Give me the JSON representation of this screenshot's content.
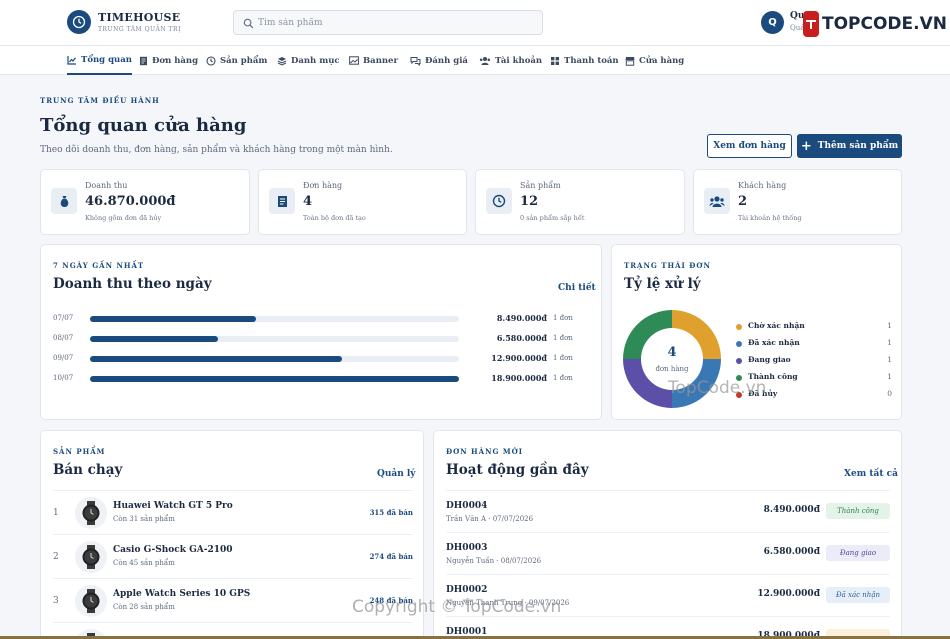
{
  "brand": {
    "name": "TIMEHOUSE",
    "subtitle": "TRUNG TÂM QUẢN TRỊ"
  },
  "search": {
    "placeholder": "Tìm sản phẩm",
    "value": ""
  },
  "user": {
    "initial": "Q",
    "name": "Quản trị viên",
    "role": "Quản trị"
  },
  "watermark": {
    "logo_text": "TOPCODE.VN",
    "overlay": "TopCode.vn",
    "copyright": "Copyright © TopCode.vn"
  },
  "nav": [
    {
      "label": "Tổng quan",
      "icon": "chart-line-icon",
      "active": true
    },
    {
      "label": "Đơn hàng",
      "icon": "receipt-icon"
    },
    {
      "label": "Sản phẩm",
      "icon": "clock-icon"
    },
    {
      "label": "Danh mục",
      "icon": "layers-icon"
    },
    {
      "label": "Banner",
      "icon": "image-icon"
    },
    {
      "label": "Đánh giá",
      "icon": "comments-icon"
    },
    {
      "label": "Tài khoản",
      "icon": "users-icon"
    },
    {
      "label": "Thanh toán",
      "icon": "grid-icon"
    },
    {
      "label": "Cửa hàng",
      "icon": "store-icon"
    }
  ],
  "hero": {
    "eyebrow": "TRUNG TÂM ĐIỀU HÀNH",
    "title": "Tổng quan cửa hàng",
    "subtitle": "Theo dõi doanh thu, đơn hàng, sản phẩm và khách hàng trong một màn hình.",
    "view_orders_label": "Xem đơn hàng",
    "add_product_label": "Thêm sản phẩm"
  },
  "stats": [
    {
      "label": "Doanh thu",
      "value": "46.870.000đ",
      "note": "Không gồm đơn đã hủy",
      "icon": "money-bag-icon"
    },
    {
      "label": "Đơn hàng",
      "value": "4",
      "note": "Toàn bộ đơn đã tạo",
      "icon": "receipt-icon"
    },
    {
      "label": "Sản phẩm",
      "value": "12",
      "note": "0 sản phẩm sắp hết",
      "icon": "clock-icon"
    },
    {
      "label": "Khách hàng",
      "value": "2",
      "note": "Tài khoản hệ thống",
      "icon": "users-icon"
    }
  ],
  "revenue": {
    "eyebrow": "7 NGÀY GẦN NHẤT",
    "title": "Doanh thu theo ngày",
    "link": "Chi tiết",
    "rows": [
      {
        "date": "07/07",
        "amount": "8.490.000đ",
        "orders": "1 đơn",
        "value": 8490000
      },
      {
        "date": "08/07",
        "amount": "6.580.000đ",
        "orders": "1 đơn",
        "value": 6580000
      },
      {
        "date": "09/07",
        "amount": "12.900.000đ",
        "orders": "1 đơn",
        "value": 12900000
      },
      {
        "date": "10/07",
        "amount": "18.900.000đ",
        "orders": "1 đơn",
        "value": 18900000
      }
    ],
    "max": 18900000
  },
  "status": {
    "eyebrow": "TRẠNG THÁI ĐƠN",
    "title": "Tỷ lệ xử lý",
    "total": "4",
    "total_label": "đơn hàng",
    "items": [
      {
        "label": "Chờ xác nhận",
        "count": "1",
        "value": 1,
        "color": "#e0a02e"
      },
      {
        "label": "Đã xác nhận",
        "count": "1",
        "value": 1,
        "color": "#3a78b5"
      },
      {
        "label": "Đang giao",
        "count": "1",
        "value": 1,
        "color": "#5b4fa8"
      },
      {
        "label": "Thành công",
        "count": "1",
        "value": 1,
        "color": "#2e8b57"
      },
      {
        "label": "Đã hủy",
        "count": "0",
        "value": 0,
        "color": "#c0392b"
      }
    ]
  },
  "bestsellers": {
    "eyebrow": "SẢN PHẨM",
    "title": "Bán chạy",
    "link": "Quản lý",
    "items": [
      {
        "rank": "1",
        "name": "Huawei Watch GT 5 Pro",
        "stock": "Còn 31 sản phẩm",
        "sold": "315 đã bán",
        "thumb": "watch-icon"
      },
      {
        "rank": "2",
        "name": "Casio G-Shock GA-2100",
        "stock": "Còn 45 sản phẩm",
        "sold": "274 đã bán",
        "thumb": "watch-icon"
      },
      {
        "rank": "3",
        "name": "Apple Watch Series 10 GPS",
        "stock": "Còn 28 sản phẩm",
        "sold": "248 đã bán",
        "thumb": "watch-icon"
      }
    ]
  },
  "orders": {
    "eyebrow": "ĐƠN HÀNG MỚI",
    "title": "Hoạt động gần đây",
    "link": "Xem tất cả",
    "items": [
      {
        "id": "DH0004",
        "meta": "Trần Văn A · 07/07/2026",
        "amount": "8.490.000đ",
        "status": "Thành công",
        "status_bg": "#e3f3e8",
        "status_fg": "#2e7d4f"
      },
      {
        "id": "DH0003",
        "meta": "Nguyễn Tuấn · 08/07/2026",
        "amount": "6.580.000đ",
        "status": "Đang giao",
        "status_bg": "#ecebf8",
        "status_fg": "#4b3f9a"
      },
      {
        "id": "DH0002",
        "meta": "Nguyễn Thanh Trung · 09/07/2026",
        "amount": "12.900.000đ",
        "status": "Đã xác nhận",
        "status_bg": "#e6eff8",
        "status_fg": "#2e5f96"
      },
      {
        "id": "DH0001",
        "meta": "",
        "amount": "18.900.000đ",
        "status": "",
        "status_bg": "#fbf0dc",
        "status_fg": "#9a6b14"
      }
    ]
  }
}
